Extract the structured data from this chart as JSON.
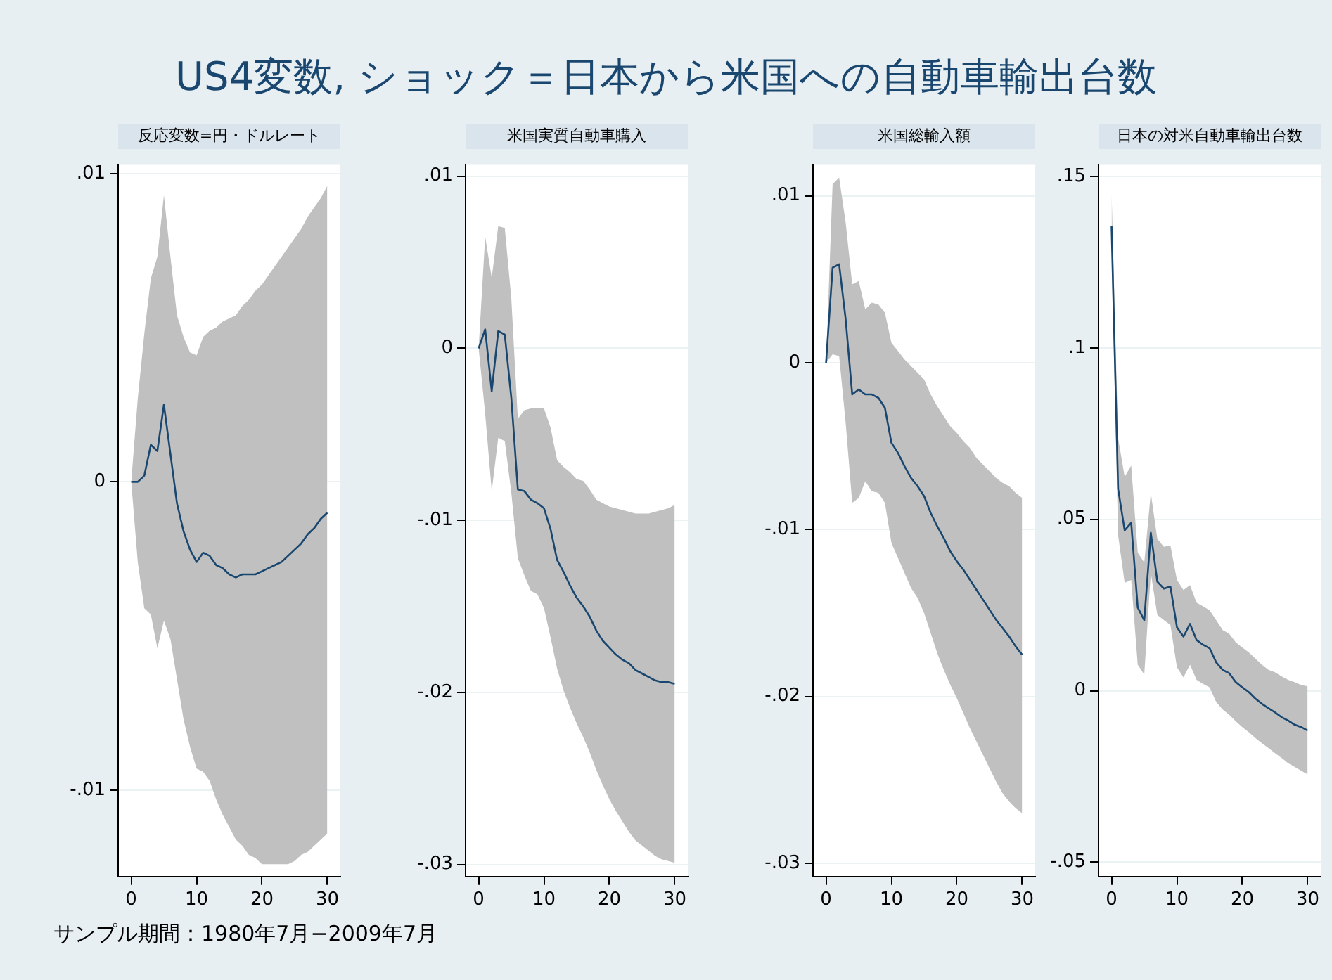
{
  "chart_data": [
    {
      "type": "line",
      "title": "US4変数, ショック＝日本から米国への自動車輸出台数",
      "subtitle": "反応変数=円・ドルレート",
      "annotations": [
        "サンプル期間：1980年7月−2009年7月"
      ],
      "x": [
        0,
        1,
        2,
        3,
        4,
        5,
        6,
        7,
        8,
        9,
        10,
        11,
        12,
        13,
        14,
        15,
        16,
        17,
        18,
        19,
        20,
        21,
        22,
        23,
        24,
        25,
        26,
        27,
        28,
        29,
        30
      ],
      "series": [
        {
          "color": "#1a476f",
          "values": [
            0,
            0,
            0.0002,
            0.0012,
            0.001,
            0.0025,
            0.0009,
            -0.0007,
            -0.0016,
            -0.0022,
            -0.0026,
            -0.0023,
            -0.0024,
            -0.0027,
            -0.0028,
            -0.003,
            -0.0031,
            -0.003,
            -0.003,
            -0.003,
            -0.0029,
            -0.0028,
            -0.0027,
            -0.0026,
            -0.0024,
            -0.0022,
            -0.002,
            -0.0017,
            -0.0015,
            -0.0012,
            -0.001
          ],
          "upper": [
            0,
            0.0027,
            0.0048,
            0.0066,
            0.0073,
            0.0093,
            0.0073,
            0.0054,
            0.0047,
            0.0042,
            0.0041,
            0.0047,
            0.0049,
            0.005,
            0.0052,
            0.0053,
            0.0054,
            0.0057,
            0.0059,
            0.0062,
            0.0064,
            0.0067,
            0.007,
            0.0073,
            0.0076,
            0.0079,
            0.0082,
            0.0086,
            0.0089,
            0.0092,
            0.0096
          ],
          "lower": [
            0,
            -0.0026,
            -0.0041,
            -0.0043,
            -0.0054,
            -0.0045,
            -0.0051,
            -0.0064,
            -0.0077,
            -0.0086,
            -0.0093,
            -0.0094,
            -0.0097,
            -0.0103,
            -0.0108,
            -0.0112,
            -0.0116,
            -0.0118,
            -0.0121,
            -0.0122,
            -0.0124,
            -0.0124,
            -0.0124,
            -0.0124,
            -0.0124,
            -0.0123,
            -0.0121,
            -0.012,
            -0.0118,
            -0.0116,
            -0.0114
          ]
        }
      ],
      "xlim": [
        -2,
        32
      ],
      "xticks": [
        0,
        10,
        20,
        30
      ],
      "ylim": [
        -0.0128,
        0.0103
      ],
      "yticks": [
        {
          "value": -0.01,
          "label": "-.01"
        },
        {
          "value": 0,
          "label": "0"
        },
        {
          "value": 0.01,
          "label": ".01"
        }
      ],
      "grid": "y",
      "legend": false,
      "marker": "none",
      "line_style": "solid"
    },
    {
      "type": "line",
      "subtitle": "米国実質自動車購入",
      "x": [
        0,
        1,
        2,
        3,
        4,
        5,
        6,
        7,
        8,
        9,
        10,
        11,
        12,
        13,
        14,
        15,
        16,
        17,
        18,
        19,
        20,
        21,
        22,
        23,
        24,
        25,
        26,
        27,
        28,
        29,
        30
      ],
      "series": [
        {
          "color": "#1a476f",
          "values": [
            0,
            0.0011,
            -0.0025,
            0.001,
            0.0008,
            -0.0029,
            -0.0082,
            -0.0083,
            -0.0088,
            -0.009,
            -0.0093,
            -0.0105,
            -0.0123,
            -0.013,
            -0.0138,
            -0.0145,
            -0.015,
            -0.0156,
            -0.0164,
            -0.017,
            -0.0174,
            -0.0178,
            -0.0181,
            -0.0183,
            -0.0187,
            -0.0189,
            -0.0191,
            -0.0193,
            -0.0194,
            -0.0194,
            -0.0195
          ],
          "upper": [
            0,
            0.0065,
            0.0041,
            0.0071,
            0.007,
            0.0029,
            -0.0041,
            -0.0036,
            -0.0035,
            -0.0035,
            -0.0035,
            -0.0046,
            -0.0065,
            -0.0069,
            -0.0072,
            -0.0076,
            -0.0077,
            -0.0082,
            -0.0088,
            -0.009,
            -0.0092,
            -0.0093,
            -0.0094,
            -0.0095,
            -0.0096,
            -0.0096,
            -0.0096,
            -0.0095,
            -0.0094,
            -0.0093,
            -0.0091
          ],
          "lower": [
            0,
            -0.0038,
            -0.0083,
            -0.0052,
            -0.0054,
            -0.0084,
            -0.0122,
            -0.0132,
            -0.0141,
            -0.0143,
            -0.0151,
            -0.0168,
            -0.0186,
            -0.0199,
            -0.0209,
            -0.0218,
            -0.0226,
            -0.0235,
            -0.0245,
            -0.0254,
            -0.0262,
            -0.0269,
            -0.0275,
            -0.0281,
            -0.0286,
            -0.0289,
            -0.0292,
            -0.0295,
            -0.0297,
            -0.0298,
            -0.0299
          ]
        }
      ],
      "xlim": [
        -2,
        32
      ],
      "xticks": [
        0,
        10,
        20,
        30
      ],
      "ylim": [
        -0.0307,
        0.0107
      ],
      "yticks": [
        {
          "value": -0.03,
          "label": "-.03"
        },
        {
          "value": -0.02,
          "label": "-.02"
        },
        {
          "value": -0.01,
          "label": "-.01"
        },
        {
          "value": 0,
          "label": "0"
        },
        {
          "value": 0.01,
          "label": ".01"
        }
      ],
      "grid": "y",
      "legend": false,
      "marker": "none",
      "line_style": "solid"
    },
    {
      "type": "line",
      "subtitle": "米国総輸入額",
      "x": [
        0,
        1,
        2,
        3,
        4,
        5,
        6,
        7,
        8,
        9,
        10,
        11,
        12,
        13,
        14,
        15,
        16,
        17,
        18,
        19,
        20,
        21,
        22,
        23,
        24,
        25,
        26,
        27,
        28,
        29,
        30
      ],
      "series": [
        {
          "color": "#1a476f",
          "values": [
            0,
            0.0057,
            0.0059,
            0.0026,
            -0.0019,
            -0.0016,
            -0.0019,
            -0.0019,
            -0.0021,
            -0.0027,
            -0.0048,
            -0.0054,
            -0.0062,
            -0.0069,
            -0.0074,
            -0.008,
            -0.009,
            -0.0098,
            -0.0105,
            -0.0113,
            -0.0119,
            -0.0124,
            -0.013,
            -0.0136,
            -0.0142,
            -0.0148,
            -0.0154,
            -0.0159,
            -0.0164,
            -0.017,
            -0.0175
          ],
          "upper": [
            0,
            0.0107,
            0.0111,
            0.0084,
            0.0047,
            0.0049,
            0.0032,
            0.0036,
            0.0035,
            0.003,
            0.0012,
            0.0007,
            0.0002,
            -0.0002,
            -0.0006,
            -0.001,
            -0.0019,
            -0.0026,
            -0.0032,
            -0.0038,
            -0.0042,
            -0.0047,
            -0.0051,
            -0.0057,
            -0.0061,
            -0.0065,
            -0.0069,
            -0.0072,
            -0.0074,
            -0.0078,
            -0.0081
          ],
          "lower": [
            0,
            0.0005,
            0.0004,
            -0.0036,
            -0.0084,
            -0.0081,
            -0.0071,
            -0.0077,
            -0.0078,
            -0.0084,
            -0.0108,
            -0.0117,
            -0.0126,
            -0.0135,
            -0.0141,
            -0.015,
            -0.0162,
            -0.0174,
            -0.0184,
            -0.0193,
            -0.0201,
            -0.021,
            -0.0219,
            -0.0227,
            -0.0235,
            -0.0243,
            -0.0251,
            -0.0258,
            -0.0263,
            -0.0267,
            -0.027
          ]
        }
      ],
      "xlim": [
        -2,
        32
      ],
      "xticks": [
        0,
        10,
        20,
        30
      ],
      "ylim": [
        -0.0308,
        0.0119
      ],
      "yticks": [
        {
          "value": -0.03,
          "label": "-.03"
        },
        {
          "value": -0.02,
          "label": "-.02"
        },
        {
          "value": -0.01,
          "label": "-.01"
        },
        {
          "value": 0,
          "label": "0"
        },
        {
          "value": 0.01,
          "label": ".01"
        }
      ],
      "grid": "y",
      "legend": false,
      "marker": "none",
      "line_style": "solid"
    },
    {
      "type": "line",
      "subtitle": "日本の対米自動車輸出台数",
      "x": [
        0,
        1,
        2,
        3,
        4,
        5,
        6,
        7,
        8,
        9,
        10,
        11,
        12,
        13,
        14,
        15,
        16,
        17,
        18,
        19,
        20,
        21,
        22,
        23,
        24,
        25,
        26,
        27,
        28,
        29,
        30
      ],
      "series": [
        {
          "color": "#1a476f",
          "values": [
            0.1355,
            0.0589,
            0.0468,
            0.049,
            0.0243,
            0.0206,
            0.0461,
            0.0318,
            0.0298,
            0.0304,
            0.0185,
            0.0158,
            0.0195,
            0.0148,
            0.0134,
            0.0124,
            0.0083,
            0.0061,
            0.0051,
            0.0025,
            0.001,
            -0.0004,
            -0.0023,
            -0.0038,
            -0.0051,
            -0.0063,
            -0.0077,
            -0.0087,
            -0.0099,
            -0.0106,
            -0.0116
          ],
          "upper": [
            0.1453,
            0.0737,
            0.0624,
            0.0657,
            0.0403,
            0.0374,
            0.0577,
            0.0443,
            0.042,
            0.0424,
            0.0323,
            0.0294,
            0.0308,
            0.0257,
            0.0246,
            0.0235,
            0.0206,
            0.0177,
            0.0166,
            0.0141,
            0.0126,
            0.0112,
            0.0094,
            0.0076,
            0.0061,
            0.0054,
            0.0042,
            0.0032,
            0.0025,
            0.0017,
            0.0013
          ],
          "lower": [
            0.128,
            0.0453,
            0.0315,
            0.0323,
            0.0076,
            0.0047,
            0.0344,
            0.0221,
            0.0206,
            0.0192,
            0.0068,
            0.0039,
            0.0076,
            0.0032,
            0.002,
            0.001,
            -0.0033,
            -0.0055,
            -0.007,
            -0.0089,
            -0.0106,
            -0.0121,
            -0.0138,
            -0.0153,
            -0.0167,
            -0.0182,
            -0.0196,
            -0.0211,
            -0.0222,
            -0.0233,
            -0.0244
          ]
        }
      ],
      "xlim": [
        -2,
        32
      ],
      "xticks": [
        0,
        10,
        20,
        30
      ],
      "ylim": [
        -0.0542,
        0.1536
      ],
      "yticks": [
        {
          "value": -0.05,
          "label": "-.05"
        },
        {
          "value": 0,
          "label": "0"
        },
        {
          "value": 0.05,
          "label": ".05"
        },
        {
          "value": 0.1,
          "label": ".1"
        },
        {
          "value": 0.15,
          "label": ".15"
        }
      ],
      "grid": "y",
      "legend": false,
      "marker": "none",
      "line_style": "solid"
    }
  ]
}
